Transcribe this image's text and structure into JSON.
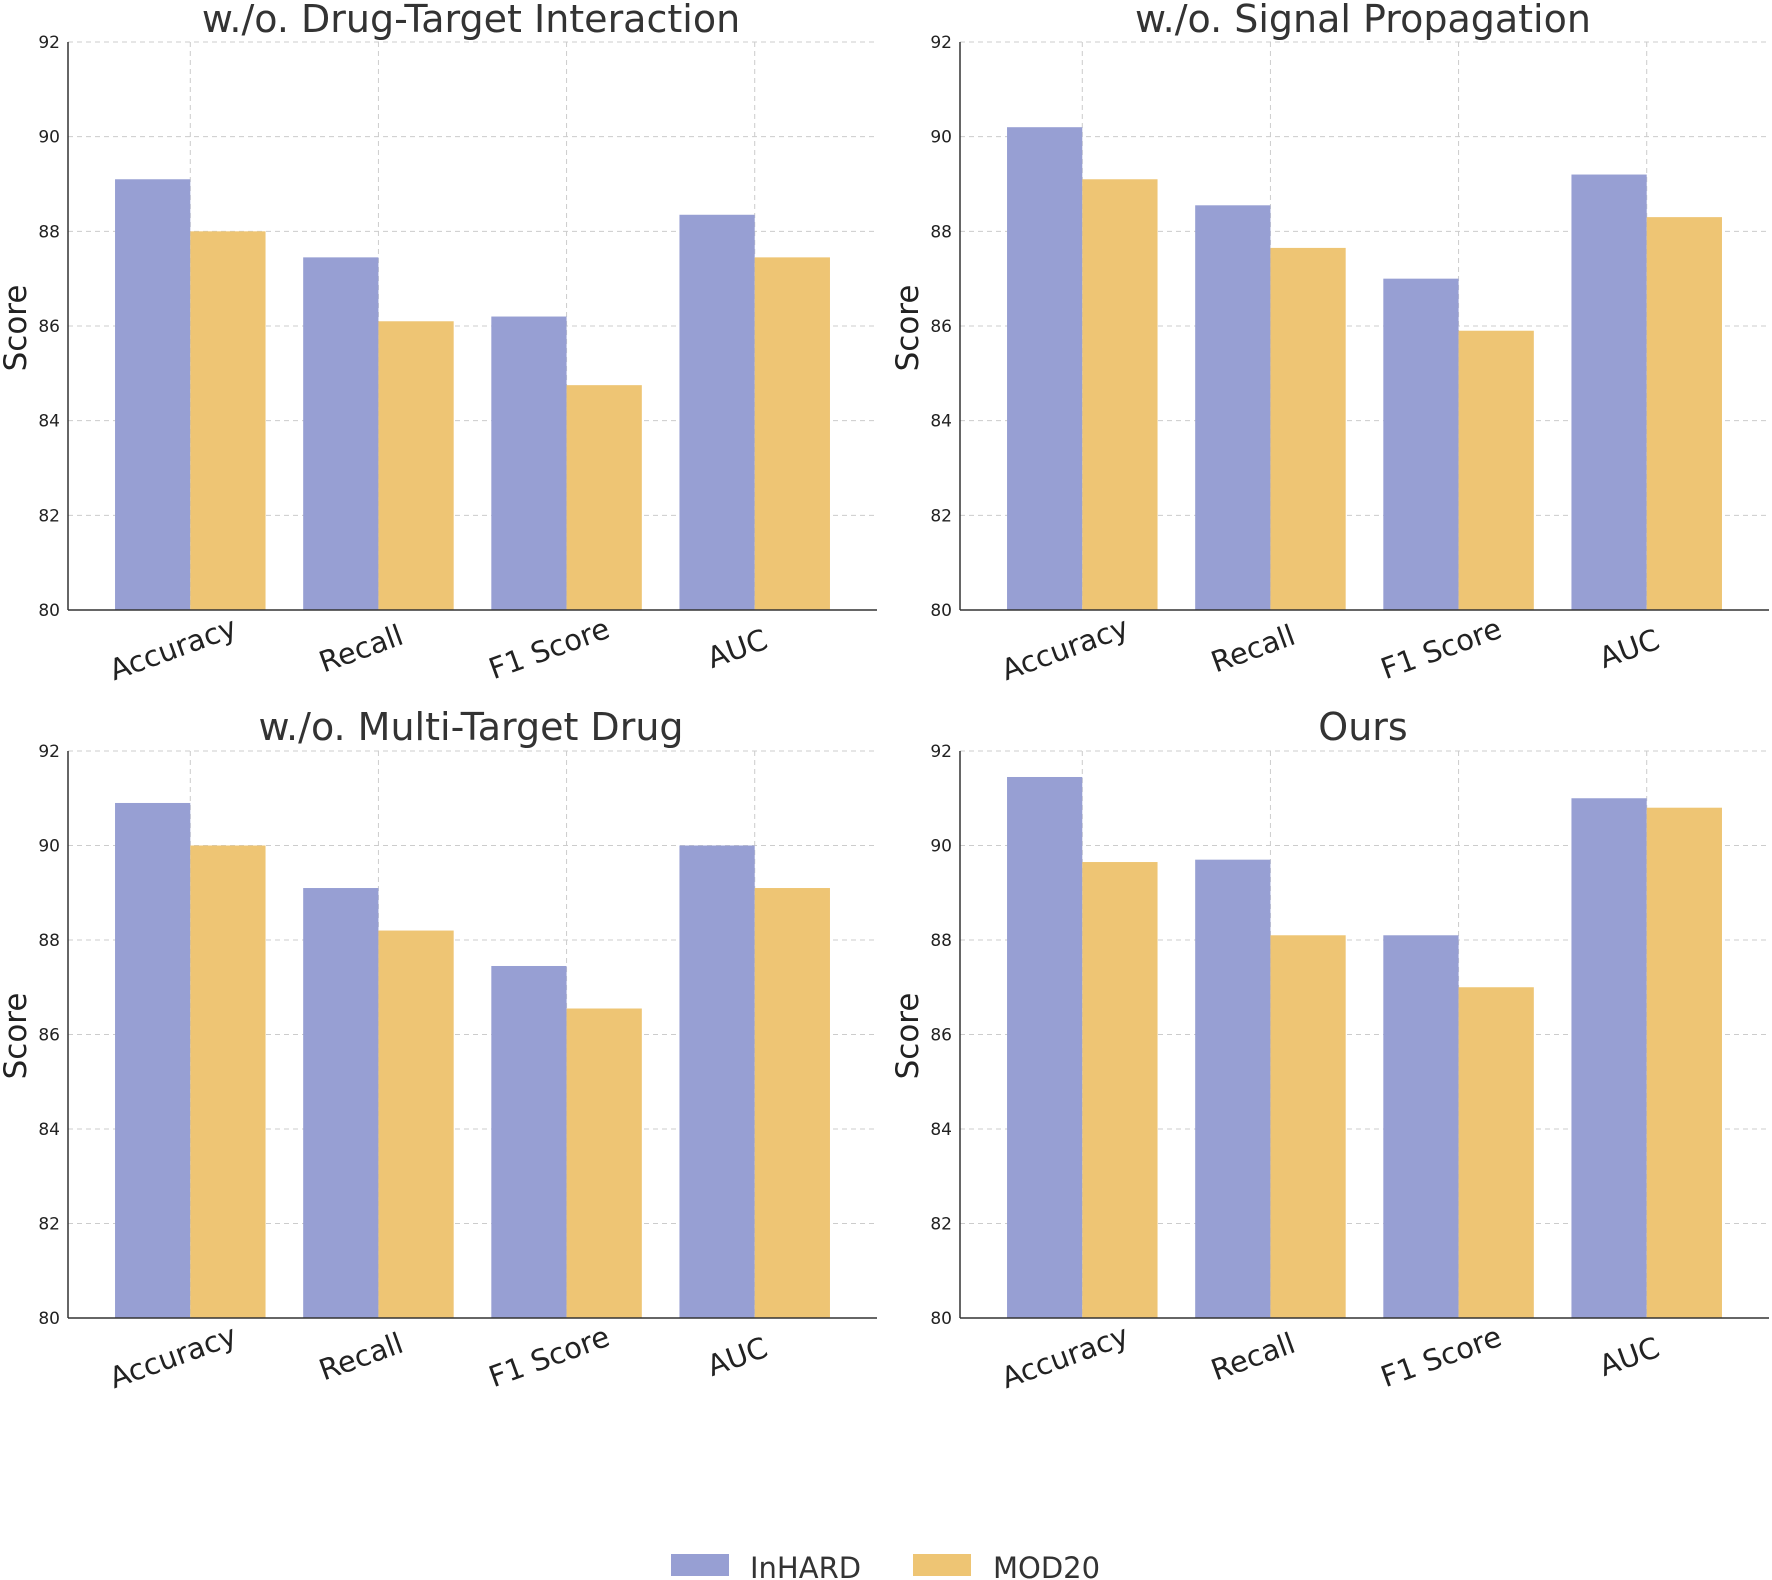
{
  "chart_data": [
    {
      "type": "bar",
      "title": "w./o. Drug-Target Interaction",
      "ylabel": "Score",
      "xlabel": "",
      "ylim": [
        80,
        92
      ],
      "yticks": [
        "80",
        "82",
        "84",
        "86",
        "88",
        "90",
        "92"
      ],
      "grid": true,
      "categories": [
        "Accuracy",
        "Recall",
        "F1 Score",
        "AUC"
      ],
      "series": [
        {
          "name": "InHARD",
          "values": [
            89.1,
            87.45,
            86.2,
            88.35
          ]
        },
        {
          "name": "MOD20",
          "values": [
            88.0,
            86.1,
            84.75,
            87.45
          ]
        }
      ]
    },
    {
      "type": "bar",
      "title": "w./o. Signal Propagation",
      "ylabel": "Score",
      "xlabel": "",
      "ylim": [
        80,
        92
      ],
      "yticks": [
        "80",
        "82",
        "84",
        "86",
        "88",
        "90",
        "92"
      ],
      "grid": true,
      "categories": [
        "Accuracy",
        "Recall",
        "F1 Score",
        "AUC"
      ],
      "series": [
        {
          "name": "InHARD",
          "values": [
            90.2,
            88.55,
            87.0,
            89.2
          ]
        },
        {
          "name": "MOD20",
          "values": [
            89.1,
            87.65,
            85.9,
            88.3
          ]
        }
      ]
    },
    {
      "type": "bar",
      "title": "w./o. Multi-Target Drug",
      "ylabel": "Score",
      "xlabel": "",
      "ylim": [
        80,
        92
      ],
      "yticks": [
        "80",
        "82",
        "84",
        "86",
        "88",
        "90",
        "92"
      ],
      "grid": true,
      "categories": [
        "Accuracy",
        "Recall",
        "F1 Score",
        "AUC"
      ],
      "series": [
        {
          "name": "InHARD",
          "values": [
            90.9,
            89.1,
            87.45,
            90.0
          ]
        },
        {
          "name": "MOD20",
          "values": [
            90.0,
            88.2,
            86.55,
            89.1
          ]
        }
      ]
    },
    {
      "type": "bar",
      "title": "Ours",
      "ylabel": "Score",
      "xlabel": "",
      "ylim": [
        80,
        92
      ],
      "yticks": [
        "80",
        "82",
        "84",
        "86",
        "88",
        "90",
        "92"
      ],
      "grid": true,
      "categories": [
        "Accuracy",
        "Recall",
        "F1 Score",
        "AUC"
      ],
      "series": [
        {
          "name": "InHARD",
          "values": [
            91.45,
            89.7,
            88.1,
            91.0
          ]
        },
        {
          "name": "MOD20",
          "values": [
            89.65,
            88.1,
            87.0,
            90.8
          ]
        }
      ]
    }
  ],
  "legend": {
    "placement": "bottom-center",
    "items": [
      {
        "label": "InHARD",
        "color": "#979fd3"
      },
      {
        "label": "MOD20",
        "color": "#eec574"
      }
    ]
  },
  "colors": {
    "InHARD": "#979fd3",
    "MOD20": "#eec574"
  }
}
